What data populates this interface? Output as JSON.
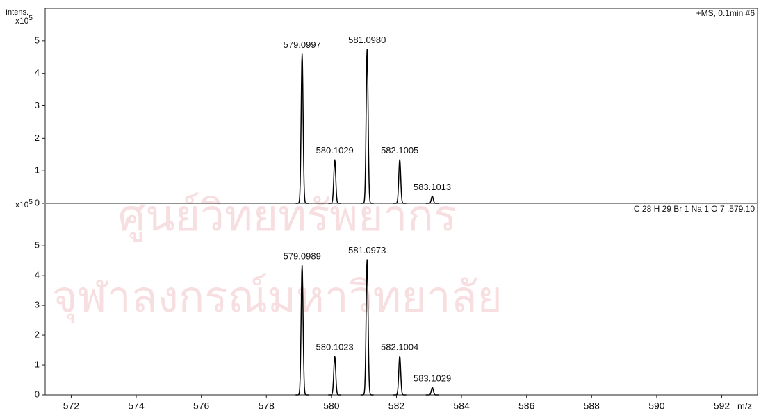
{
  "watermark": [
    "ศูนย์วิทยทรัพยากร",
    "จุฬาลงกรณ์มหาวิทยาลัย"
  ],
  "chart_data": [
    {
      "type": "spectrum",
      "y_axis_title": "Intens.",
      "y_scale_base": "x10",
      "y_scale_exponent": 5,
      "annotation": "+MS, 0.1min #6",
      "xlim": [
        571.2,
        593.1
      ],
      "ylim": [
        0,
        6
      ],
      "yticks": [
        0,
        1,
        2,
        3,
        4,
        5
      ],
      "series": [
        {
          "color": "#000000",
          "x": [
            579.0997,
            580.1029,
            581.098,
            582.1005,
            583.1013
          ],
          "x_labels": [
            "579.0997",
            "580.1029",
            "581.0980",
            "582.1005",
            "583.1013"
          ],
          "values": [
            4.6,
            1.35,
            4.75,
            1.35,
            0.22
          ]
        }
      ]
    },
    {
      "type": "spectrum",
      "y_scale_base": "x10",
      "y_scale_exponent": 5,
      "annotation": "C 28 H 29 Br 1 Na 1 O 7 ,579.10",
      "x_axis_title": "m/z",
      "xlim": [
        571.2,
        593.1
      ],
      "ylim": [
        0,
        6.4
      ],
      "yticks": [
        0,
        1,
        2,
        3,
        4,
        5
      ],
      "xticks": [
        572,
        574,
        576,
        578,
        580,
        582,
        584,
        586,
        588,
        590,
        592
      ],
      "series": [
        {
          "color": "#000000",
          "x": [
            579.0989,
            580.1023,
            581.0973,
            582.1004,
            583.1029
          ],
          "x_labels": [
            "579.0989",
            "580.1023",
            "581.0973",
            "582.1004",
            "583.1029"
          ],
          "values": [
            4.35,
            1.3,
            4.55,
            1.3,
            0.25
          ]
        }
      ]
    }
  ]
}
